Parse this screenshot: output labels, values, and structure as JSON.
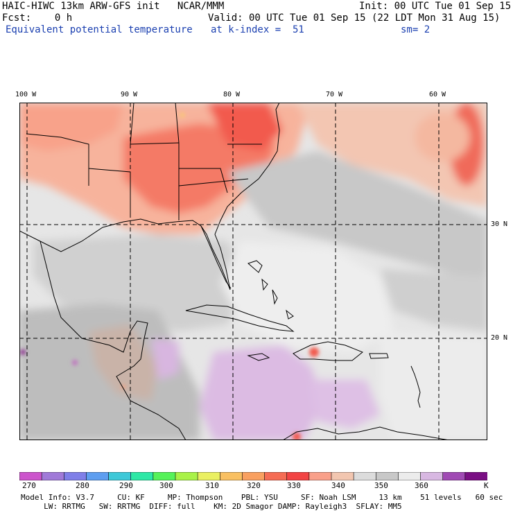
{
  "header": {
    "model_line": "HAIC-HIWC 13km ARW-GFS init   NCAR/MMM",
    "init_line": "Init: 00 UTC Tue 01 Sep 15",
    "fcst_line": "Fcst:    0 h",
    "valid_line": "Valid: 00 UTC Tue 01 Sep 15 (22 LDT Mon 31 Aug 15)",
    "field_name": "Equivalent potential temperature",
    "level": "at k-index =  51",
    "smoothing": "sm= 2"
  },
  "map": {
    "lon_labels": [
      "100 W",
      "90 W",
      "80 W",
      "70 W",
      "60 W"
    ],
    "lat_labels": [
      "30 N",
      "20 N"
    ],
    "region": "Gulf of Mexico, Caribbean and western Atlantic",
    "colors": {
      "water_base": "#e2e2e2",
      "warm_land": "#f9a98c",
      "hot": "#f36b5e",
      "cool_purple": "#deb6e2"
    }
  },
  "colorbar": {
    "unit": "K",
    "tick_labels": [
      "270",
      "280",
      "290",
      "300",
      "310",
      "320",
      "330",
      "340",
      "350",
      "360"
    ],
    "colors": [
      "#cc55cc",
      "#a07ad8",
      "#7f7fe8",
      "#5e9ef0",
      "#3ec8d8",
      "#2ee8a6",
      "#56f25a",
      "#a9f248",
      "#eaf062",
      "#f9c062",
      "#f9a060",
      "#f56c54",
      "#f24444",
      "#f9a08a",
      "#f2c6b0",
      "#dcdcdc",
      "#c8c8c8",
      "#ececec",
      "#d8b8e2",
      "#a04ab4",
      "#7a0f84"
    ]
  },
  "footer": {
    "line1": "Model Info: V3.7     CU: KF     MP: Thompson    PBL: YSU     SF: Noah LSM     13 km    51 levels   60 sec",
    "line2": "     LW: RRTMG   SW: RRTMG  DIFF: full    KM: 2D Smagor DAMP: Rayleigh3  SFLAY: MM5"
  }
}
